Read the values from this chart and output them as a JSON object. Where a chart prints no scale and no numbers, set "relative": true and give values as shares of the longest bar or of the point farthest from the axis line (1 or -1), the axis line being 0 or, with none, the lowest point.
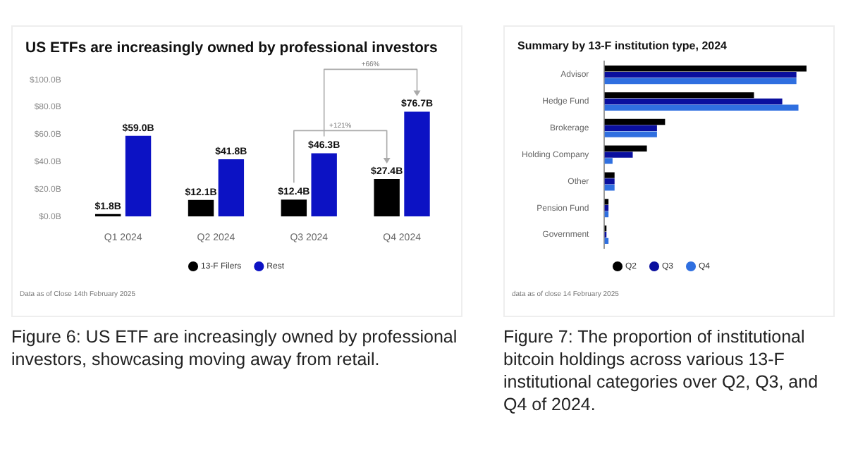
{
  "chart_data": [
    {
      "type": "bar",
      "title": "US ETFs are increasingly owned by professional investors",
      "categories": [
        "Q1 2024",
        "Q2 2024",
        "Q3 2024",
        "Q4 2024"
      ],
      "series": [
        {
          "name": "13-F Filers",
          "color": "#000000",
          "values": [
            1.8,
            12.1,
            12.4,
            27.4
          ],
          "value_labels": [
            "$1.8B",
            "$12.1B",
            "$12.4B",
            "$27.4B"
          ]
        },
        {
          "name": "Rest",
          "color": "#0c12c4",
          "values": [
            59.0,
            41.8,
            46.3,
            76.7
          ],
          "value_labels": [
            "$59.0B",
            "$41.8B",
            "$46.3B",
            "$76.7B"
          ]
        }
      ],
      "ylim": [
        0,
        100
      ],
      "yticks": [
        {
          "value": 0,
          "label": "$0.0B"
        },
        {
          "value": 20,
          "label": "$20.0B"
        },
        {
          "value": 40,
          "label": "$40.0B"
        },
        {
          "value": 60,
          "label": "$60.0B"
        },
        {
          "value": 80,
          "label": "$80.0B"
        },
        {
          "value": 100,
          "label": "$100.0B"
        }
      ],
      "legend": "bottom",
      "annotations": [
        "Data as of Close 14th February 2025",
        "Figure 6: US ETF are increasingly owned by professional investors, showcasing moving away from retail.",
        "+121%",
        "+66%"
      ]
    },
    {
      "type": "bar",
      "orientation": "horizontal",
      "relative": true,
      "title": "Summary by 13-F institution type, 2024",
      "categories": [
        "Advisor",
        "Hedge Fund",
        "Brokerage",
        "Holding Company",
        "Other",
        "Pension Fund",
        "Government"
      ],
      "series": [
        {
          "name": "Q2",
          "color": "#000000",
          "values": [
            1,
            0.74,
            0.3,
            0.21,
            0.05,
            0.02,
            0.01
          ]
        },
        {
          "name": "Q3",
          "color": "#0a0f9e",
          "values": [
            0.95,
            0.88,
            0.26,
            0.14,
            0.05,
            0.02,
            0.01
          ]
        },
        {
          "name": "Q4",
          "color": "#2f6fe0",
          "values": [
            0.95,
            0.96,
            0.26,
            0.04,
            0.05,
            0.02,
            0.02
          ]
        }
      ],
      "legend": "bottom",
      "annotations": [
        "data as of close 14 February 2025",
        "Figure 7: The proportion of institutional bitcoin holdings across various 13-F institutional categories over Q2, Q3, and Q4 of 2024."
      ]
    }
  ]
}
